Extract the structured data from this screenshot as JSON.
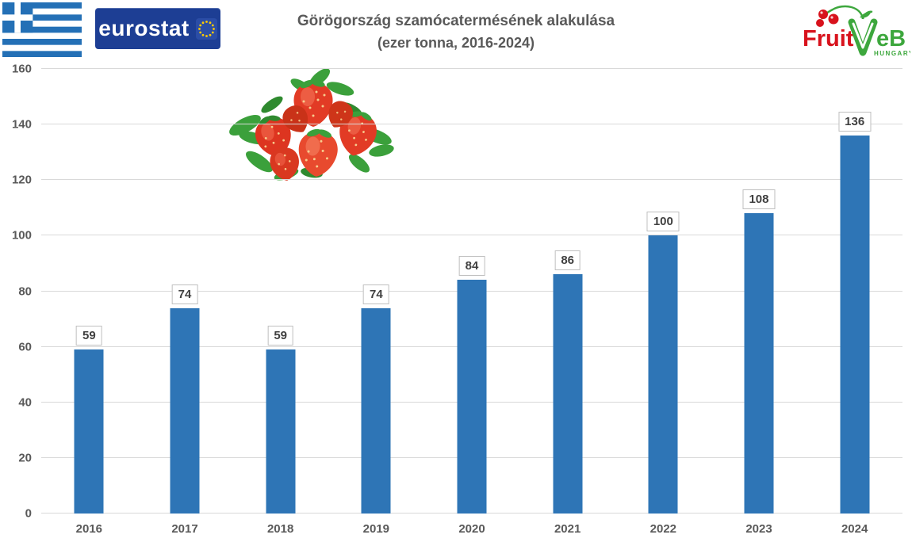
{
  "header": {
    "eurostat_label": "eurostat",
    "fruitveb": {
      "fruit": "Fruit",
      "veb": "VeB",
      "country": "HUNGARY"
    }
  },
  "chart_data": {
    "type": "bar",
    "title": "Görögország szamócatermésének alakulása (ezer tonna, 2016-2024)",
    "title_line1": "Görögország szamócatermésének alakulása",
    "title_line2": "(ezer tonna, 2016-2024)",
    "categories": [
      "2016",
      "2017",
      "2018",
      "2019",
      "2020",
      "2021",
      "2022",
      "2023",
      "2024"
    ],
    "values": [
      59,
      74,
      59,
      74,
      84,
      86,
      100,
      108,
      136
    ],
    "unit": "ezer tonna",
    "ylim": [
      0,
      160
    ],
    "ytick_step": 20,
    "yticks": [
      0,
      20,
      40,
      60,
      80,
      100,
      120,
      140,
      160
    ],
    "grid": "horizontal",
    "legend": "none",
    "data_labels": true
  },
  "colors": {
    "bar": "#2e75b6",
    "grid": "#d9d9d9",
    "axis_text": "#595959",
    "title_text": "#595959",
    "label_box_border": "#bfbfbf",
    "label_text": "#404040",
    "flag_blue": "#2470b6",
    "eurostat_blue": "#1d3e94",
    "eu_star_yellow": "#ffcc00",
    "fruitveb_red": "#d8121c",
    "fruitveb_green": "#3da73d",
    "strawberry_red": "#e23b25",
    "leaf_green": "#3ba03b"
  }
}
